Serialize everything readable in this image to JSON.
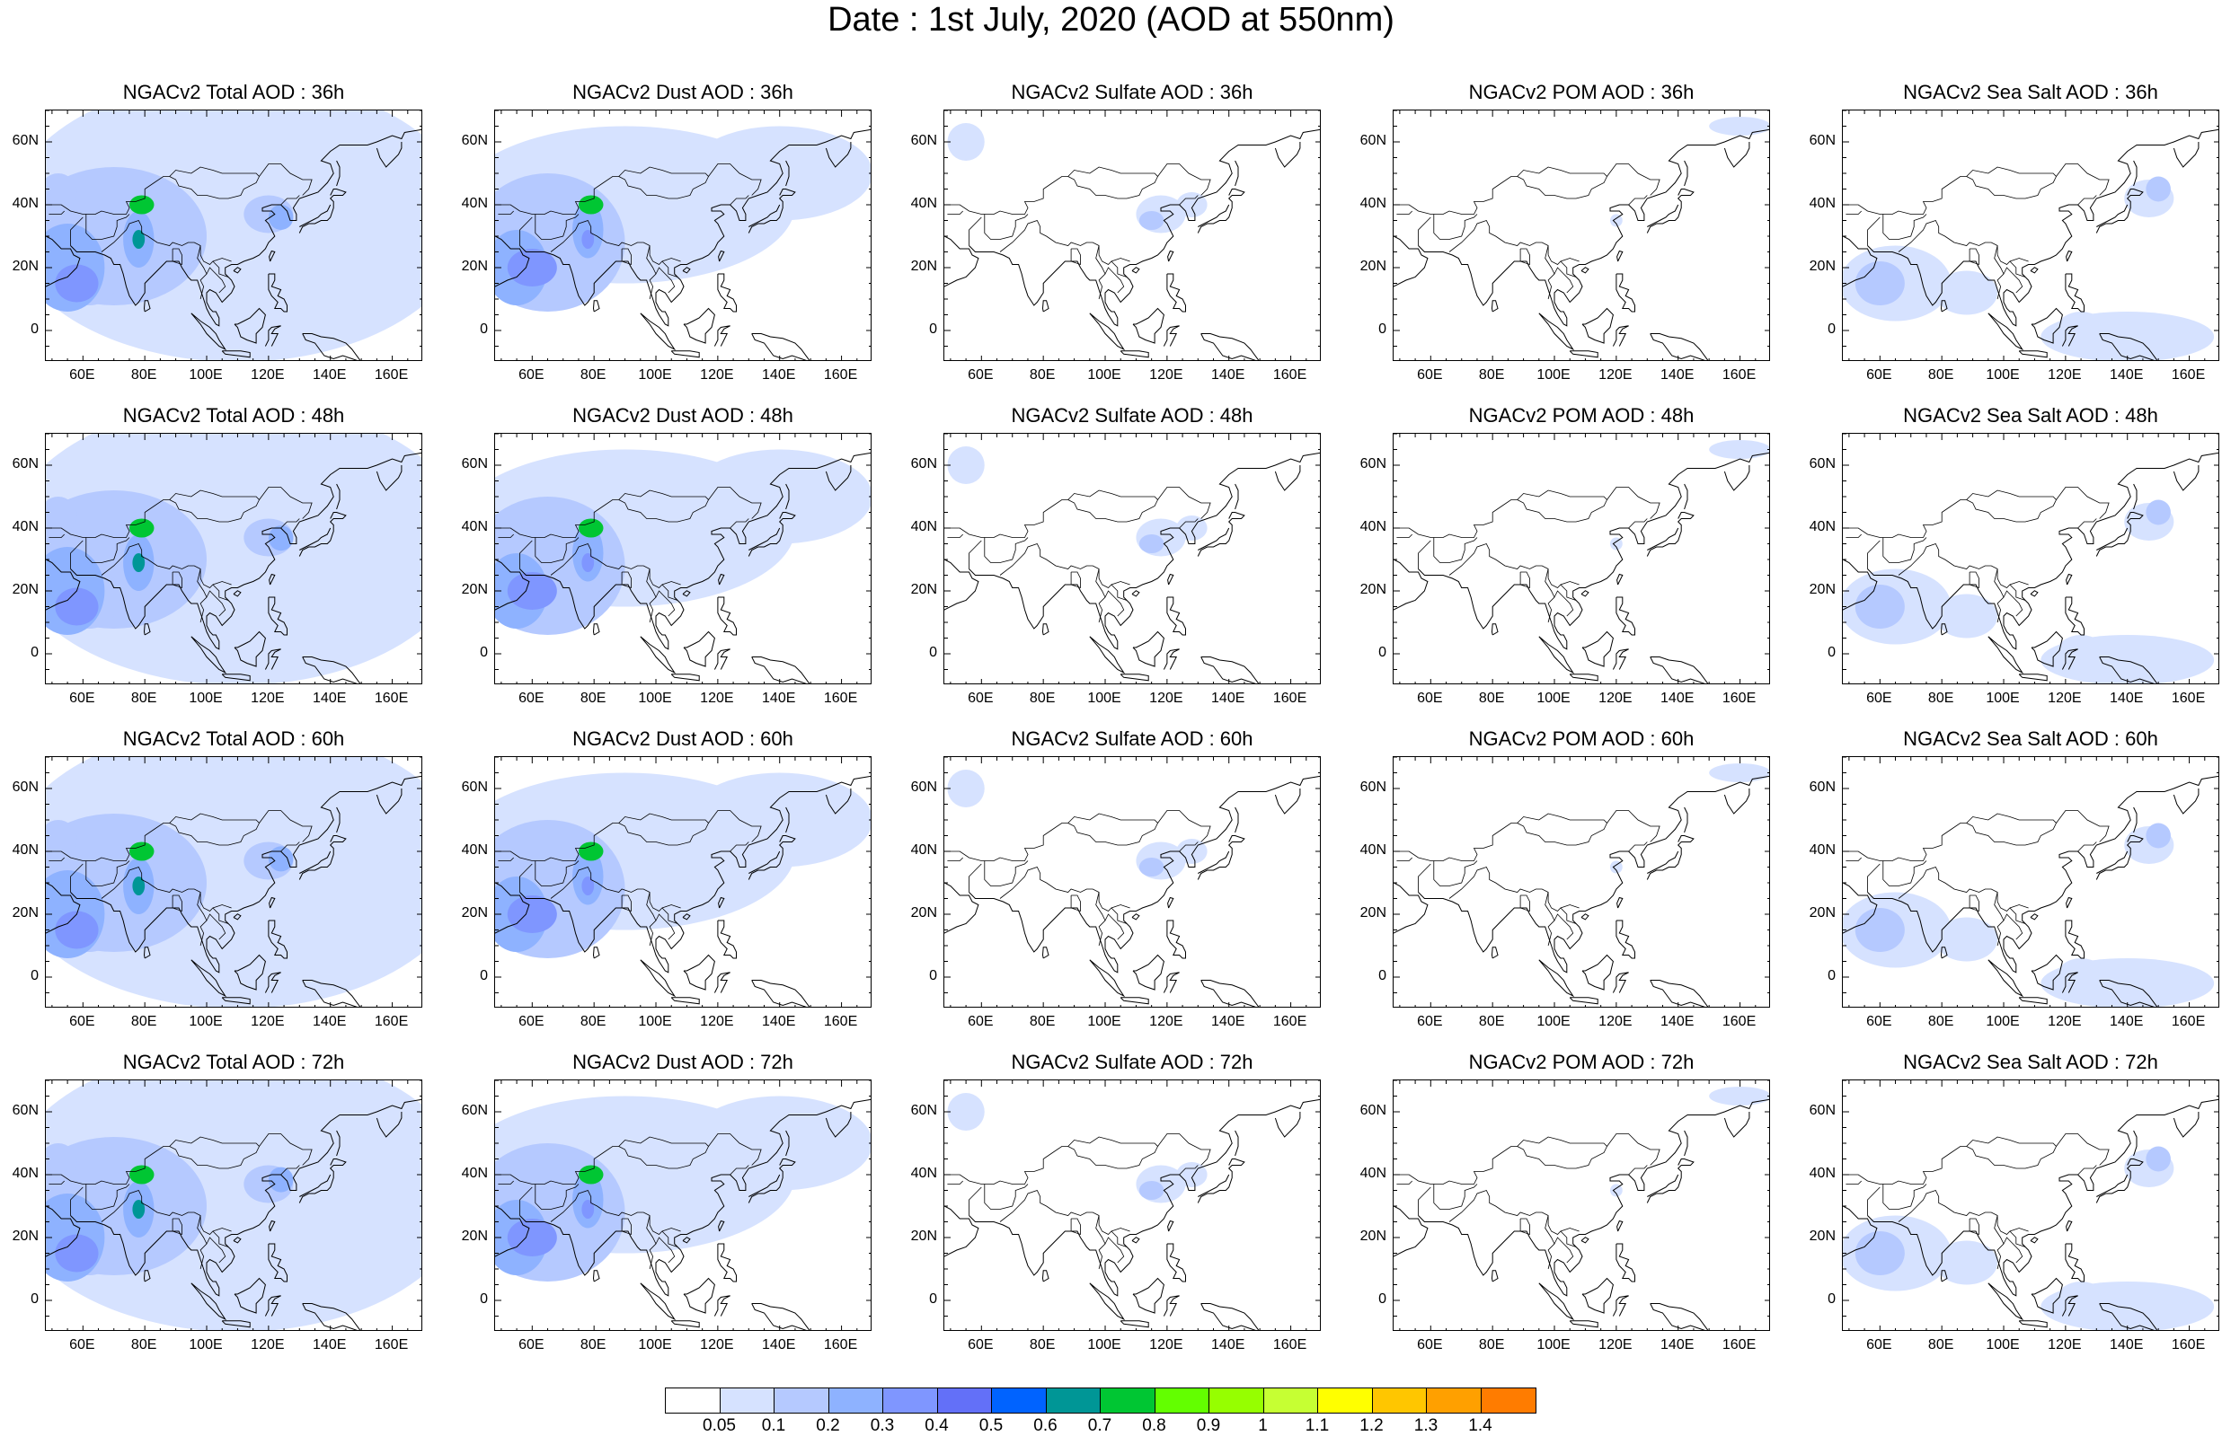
{
  "title": "Date : 1st July, 2020 (AOD at 550nm)",
  "panels": [
    [
      "NGACv2 Total AOD : 36h",
      "NGACv2 Dust AOD : 36h",
      "NGACv2 Sulfate AOD : 36h",
      "NGACv2 POM AOD : 36h",
      "NGACv2 Sea Salt AOD : 36h"
    ],
    [
      "NGACv2 Total AOD : 48h",
      "NGACv2 Dust AOD : 48h",
      "NGACv2 Sulfate AOD : 48h",
      "NGACv2 POM AOD : 48h",
      "NGACv2 Sea Salt AOD : 48h"
    ],
    [
      "NGACv2 Total AOD : 60h",
      "NGACv2 Dust AOD : 60h",
      "NGACv2 Sulfate AOD : 60h",
      "NGACv2 POM AOD : 60h",
      "NGACv2 Sea Salt AOD : 60h"
    ],
    [
      "NGACv2 Total AOD : 72h",
      "NGACv2 Dust AOD : 72h",
      "NGACv2 Sulfate AOD : 72h",
      "NGACv2 POM AOD : 72h",
      "NGACv2 Sea Salt  AOD : 72h"
    ]
  ],
  "lat_ticks": [
    "60N",
    "40N",
    "20N",
    "0"
  ],
  "lon_ticks": [
    "60E",
    "80E",
    "100E",
    "120E",
    "140E",
    "160E"
  ],
  "colorbar": {
    "labels": [
      "0.05",
      "0.1",
      "0.2",
      "0.3",
      "0.4",
      "0.5",
      "0.6",
      "0.7",
      "0.8",
      "0.9",
      "1",
      "1.1",
      "1.2",
      "1.3",
      "1.4"
    ],
    "colors": [
      "#ffffff",
      "#d6e2ff",
      "#b5c9ff",
      "#8eb2ff",
      "#7f96ff",
      "#6370f8",
      "#0063ff",
      "#009696",
      "#00c633",
      "#63ff00",
      "#96ff00",
      "#c6ff33",
      "#ffff00",
      "#ffc600",
      "#ffa000",
      "#ff7c00",
      "#ff1900"
    ]
  }
}
